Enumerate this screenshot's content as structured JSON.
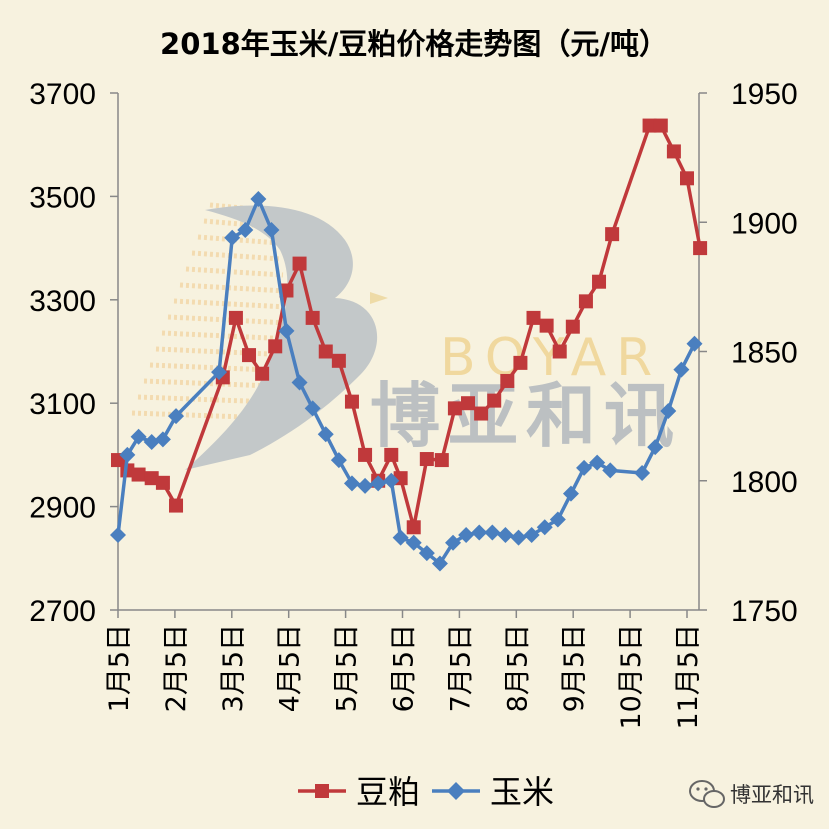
{
  "chart_data": {
    "type": "line",
    "title": "2018年玉米/豆粕价格走势图（元/吨）",
    "x_ticks": [
      "1月5日",
      "2月5日",
      "3月5日",
      "4月5日",
      "5月5日",
      "6月5日",
      "7月5日",
      "8月5日",
      "9月5日",
      "10月5日",
      "11月5日"
    ],
    "y_left": {
      "min": 2700,
      "max": 3700,
      "ticks": [
        2700,
        2900,
        3100,
        3300,
        3500,
        3700
      ]
    },
    "y_right": {
      "min": 1750,
      "max": 1950,
      "ticks": [
        1750,
        1800,
        1850,
        1900,
        1950
      ]
    },
    "grid": false,
    "legend_position": "bottom",
    "series": [
      {
        "name": "豆粕",
        "axis": "left",
        "color": "#c0393b",
        "marker": "square",
        "points": [
          [
            "2018-01-05",
            2990
          ],
          [
            "2018-01-10",
            2970
          ],
          [
            "2018-01-16",
            2962
          ],
          [
            "2018-01-23",
            2955
          ],
          [
            "2018-01-29",
            2946
          ],
          [
            "2018-02-05",
            2902
          ],
          [
            "2018-03-02",
            3150
          ],
          [
            "2018-03-09",
            3265
          ],
          [
            "2018-03-16",
            3193
          ],
          [
            "2018-03-23",
            3157
          ],
          [
            "2018-03-30",
            3210
          ],
          [
            "2018-04-05",
            3318
          ],
          [
            "2018-04-12",
            3370
          ],
          [
            "2018-04-19",
            3265
          ],
          [
            "2018-04-26",
            3200
          ],
          [
            "2018-05-03",
            3182
          ],
          [
            "2018-05-10",
            3103
          ],
          [
            "2018-05-17",
            3000
          ],
          [
            "2018-05-24",
            2950
          ],
          [
            "2018-05-31",
            3000
          ],
          [
            "2018-06-05",
            2955
          ],
          [
            "2018-06-12",
            2860
          ],
          [
            "2018-06-19",
            2992
          ],
          [
            "2018-06-27",
            2990
          ],
          [
            "2018-07-04",
            3090
          ],
          [
            "2018-07-11",
            3100
          ],
          [
            "2018-07-18",
            3080
          ],
          [
            "2018-07-25",
            3105
          ],
          [
            "2018-08-01",
            3143
          ],
          [
            "2018-08-08",
            3178
          ],
          [
            "2018-08-15",
            3265
          ],
          [
            "2018-08-22",
            3250
          ],
          [
            "2018-08-29",
            3200
          ],
          [
            "2018-09-05",
            3248
          ],
          [
            "2018-09-12",
            3297
          ],
          [
            "2018-09-19",
            3335
          ],
          [
            "2018-09-26",
            3427
          ],
          [
            "2018-10-16",
            3637
          ],
          [
            "2018-10-22",
            3637
          ],
          [
            "2018-10-29",
            3587
          ],
          [
            "2018-11-05",
            3535
          ],
          [
            "2018-11-12",
            3400
          ]
        ]
      },
      {
        "name": "玉米",
        "axis": "right",
        "color": "#4a7fbf",
        "marker": "diamond",
        "points": [
          [
            "2018-01-05",
            1779
          ],
          [
            "2018-01-10",
            1810
          ],
          [
            "2018-01-16",
            1817
          ],
          [
            "2018-01-23",
            1815
          ],
          [
            "2018-01-29",
            1816
          ],
          [
            "2018-02-05",
            1825
          ],
          [
            "2018-02-28",
            1842
          ],
          [
            "2018-03-07",
            1894
          ],
          [
            "2018-03-14",
            1897
          ],
          [
            "2018-03-21",
            1909
          ],
          [
            "2018-03-28",
            1897
          ],
          [
            "2018-04-05",
            1858
          ],
          [
            "2018-04-12",
            1838
          ],
          [
            "2018-04-19",
            1828
          ],
          [
            "2018-04-26",
            1818
          ],
          [
            "2018-05-03",
            1808
          ],
          [
            "2018-05-10",
            1799
          ],
          [
            "2018-05-17",
            1798
          ],
          [
            "2018-05-24",
            1799
          ],
          [
            "2018-05-31",
            1800
          ],
          [
            "2018-06-05",
            1778
          ],
          [
            "2018-06-12",
            1776
          ],
          [
            "2018-06-19",
            1772
          ],
          [
            "2018-06-26",
            1768
          ],
          [
            "2018-07-03",
            1776
          ],
          [
            "2018-07-10",
            1779
          ],
          [
            "2018-07-17",
            1780
          ],
          [
            "2018-07-24",
            1780
          ],
          [
            "2018-07-31",
            1779
          ],
          [
            "2018-08-07",
            1778
          ],
          [
            "2018-08-14",
            1779
          ],
          [
            "2018-08-21",
            1782
          ],
          [
            "2018-08-28",
            1785
          ],
          [
            "2018-09-04",
            1795
          ],
          [
            "2018-09-11",
            1805
          ],
          [
            "2018-09-18",
            1807
          ],
          [
            "2018-09-25",
            1804
          ],
          [
            "2018-10-12",
            1803
          ],
          [
            "2018-10-19",
            1813
          ],
          [
            "2018-10-26",
            1827
          ],
          [
            "2018-11-02",
            1843
          ],
          [
            "2018-11-09",
            1853
          ]
        ]
      }
    ]
  },
  "watermark": {
    "letters": "BOYAR",
    "cn": "博亚和讯"
  },
  "brand": {
    "icon": "wechat-icon",
    "text": "博亚和讯"
  }
}
